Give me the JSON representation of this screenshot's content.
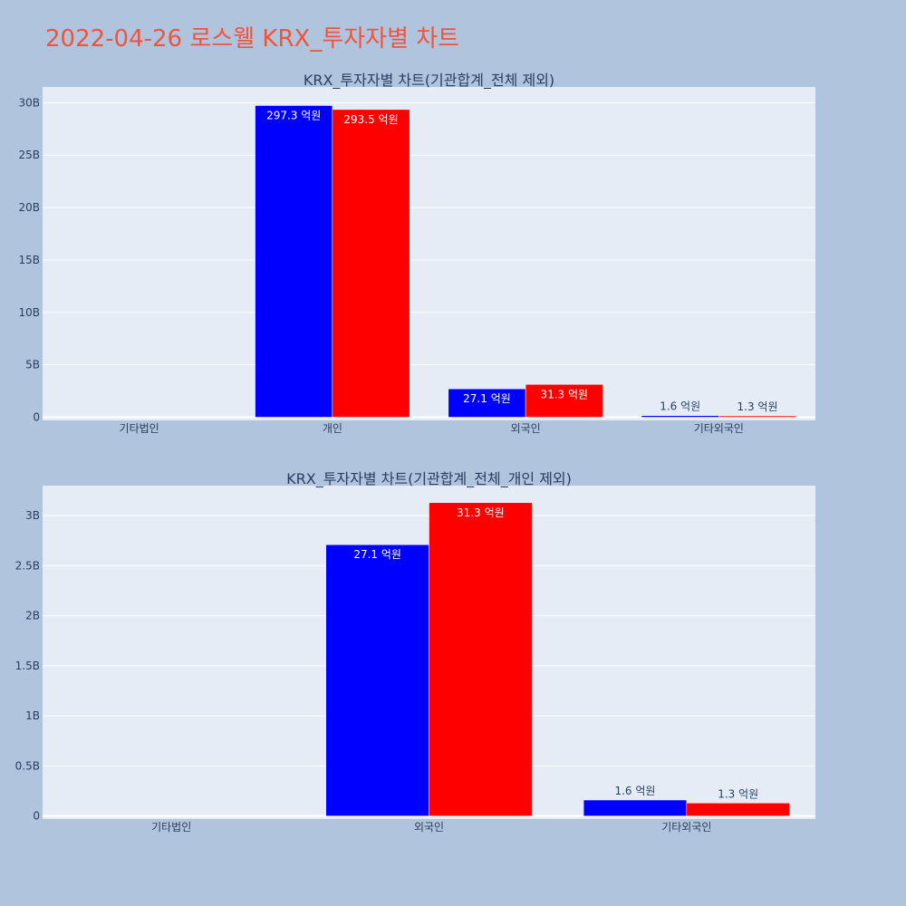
{
  "page": {
    "title": "2022-04-26 로스웰 KRX_투자자별 차트",
    "title_color": "#EF553B",
    "background": "#B0C4DE",
    "plot_background": "#E5ECF6"
  },
  "chart_data": [
    {
      "type": "bar",
      "title": "KRX_투자자별 차트(기관합계_전체 제외)",
      "categories": [
        "기타법인",
        "개인",
        "외국인",
        "기타외국인"
      ],
      "series": [
        {
          "color": "#0000FF",
          "values": [
            0,
            29730000000,
            2710000000,
            160000000
          ],
          "labels": [
            "",
            "297.3 억원",
            "27.1 억원",
            "1.6 억원"
          ]
        },
        {
          "color": "#FF0000",
          "values": [
            0,
            29350000000,
            3130000000,
            130000000
          ],
          "labels": [
            "",
            "293.5 억원",
            "31.3 억원",
            "1.3 억원"
          ]
        }
      ],
      "yticks": [
        0,
        5000000000,
        10000000000,
        15000000000,
        20000000000,
        25000000000,
        30000000000
      ],
      "ytick_labels": [
        "0",
        "5B",
        "10B",
        "15B",
        "20B",
        "25B",
        "30B"
      ],
      "ylim": [
        -300000000,
        31500000000
      ],
      "grid": true,
      "barmode": "group"
    },
    {
      "type": "bar",
      "title": "KRX_투자자별 차트(기관합계_전체_개인 제외)",
      "categories": [
        "기타법인",
        "외국인",
        "기타외국인"
      ],
      "series": [
        {
          "color": "#0000FF",
          "values": [
            0,
            2710000000,
            160000000
          ],
          "labels": [
            "",
            "27.1 억원",
            "1.6 억원"
          ]
        },
        {
          "color": "#FF0000",
          "values": [
            0,
            3130000000,
            130000000
          ],
          "labels": [
            "",
            "31.3 억원",
            "1.3 억원"
          ]
        }
      ],
      "yticks": [
        0,
        500000000,
        1000000000,
        1500000000,
        2000000000,
        2500000000,
        3000000000
      ],
      "ytick_labels": [
        "0",
        "0.5B",
        "1B",
        "1.5B",
        "2B",
        "2.5B",
        "3B"
      ],
      "ylim": [
        -30000000,
        3300000000
      ],
      "grid": true,
      "barmode": "group"
    }
  ]
}
